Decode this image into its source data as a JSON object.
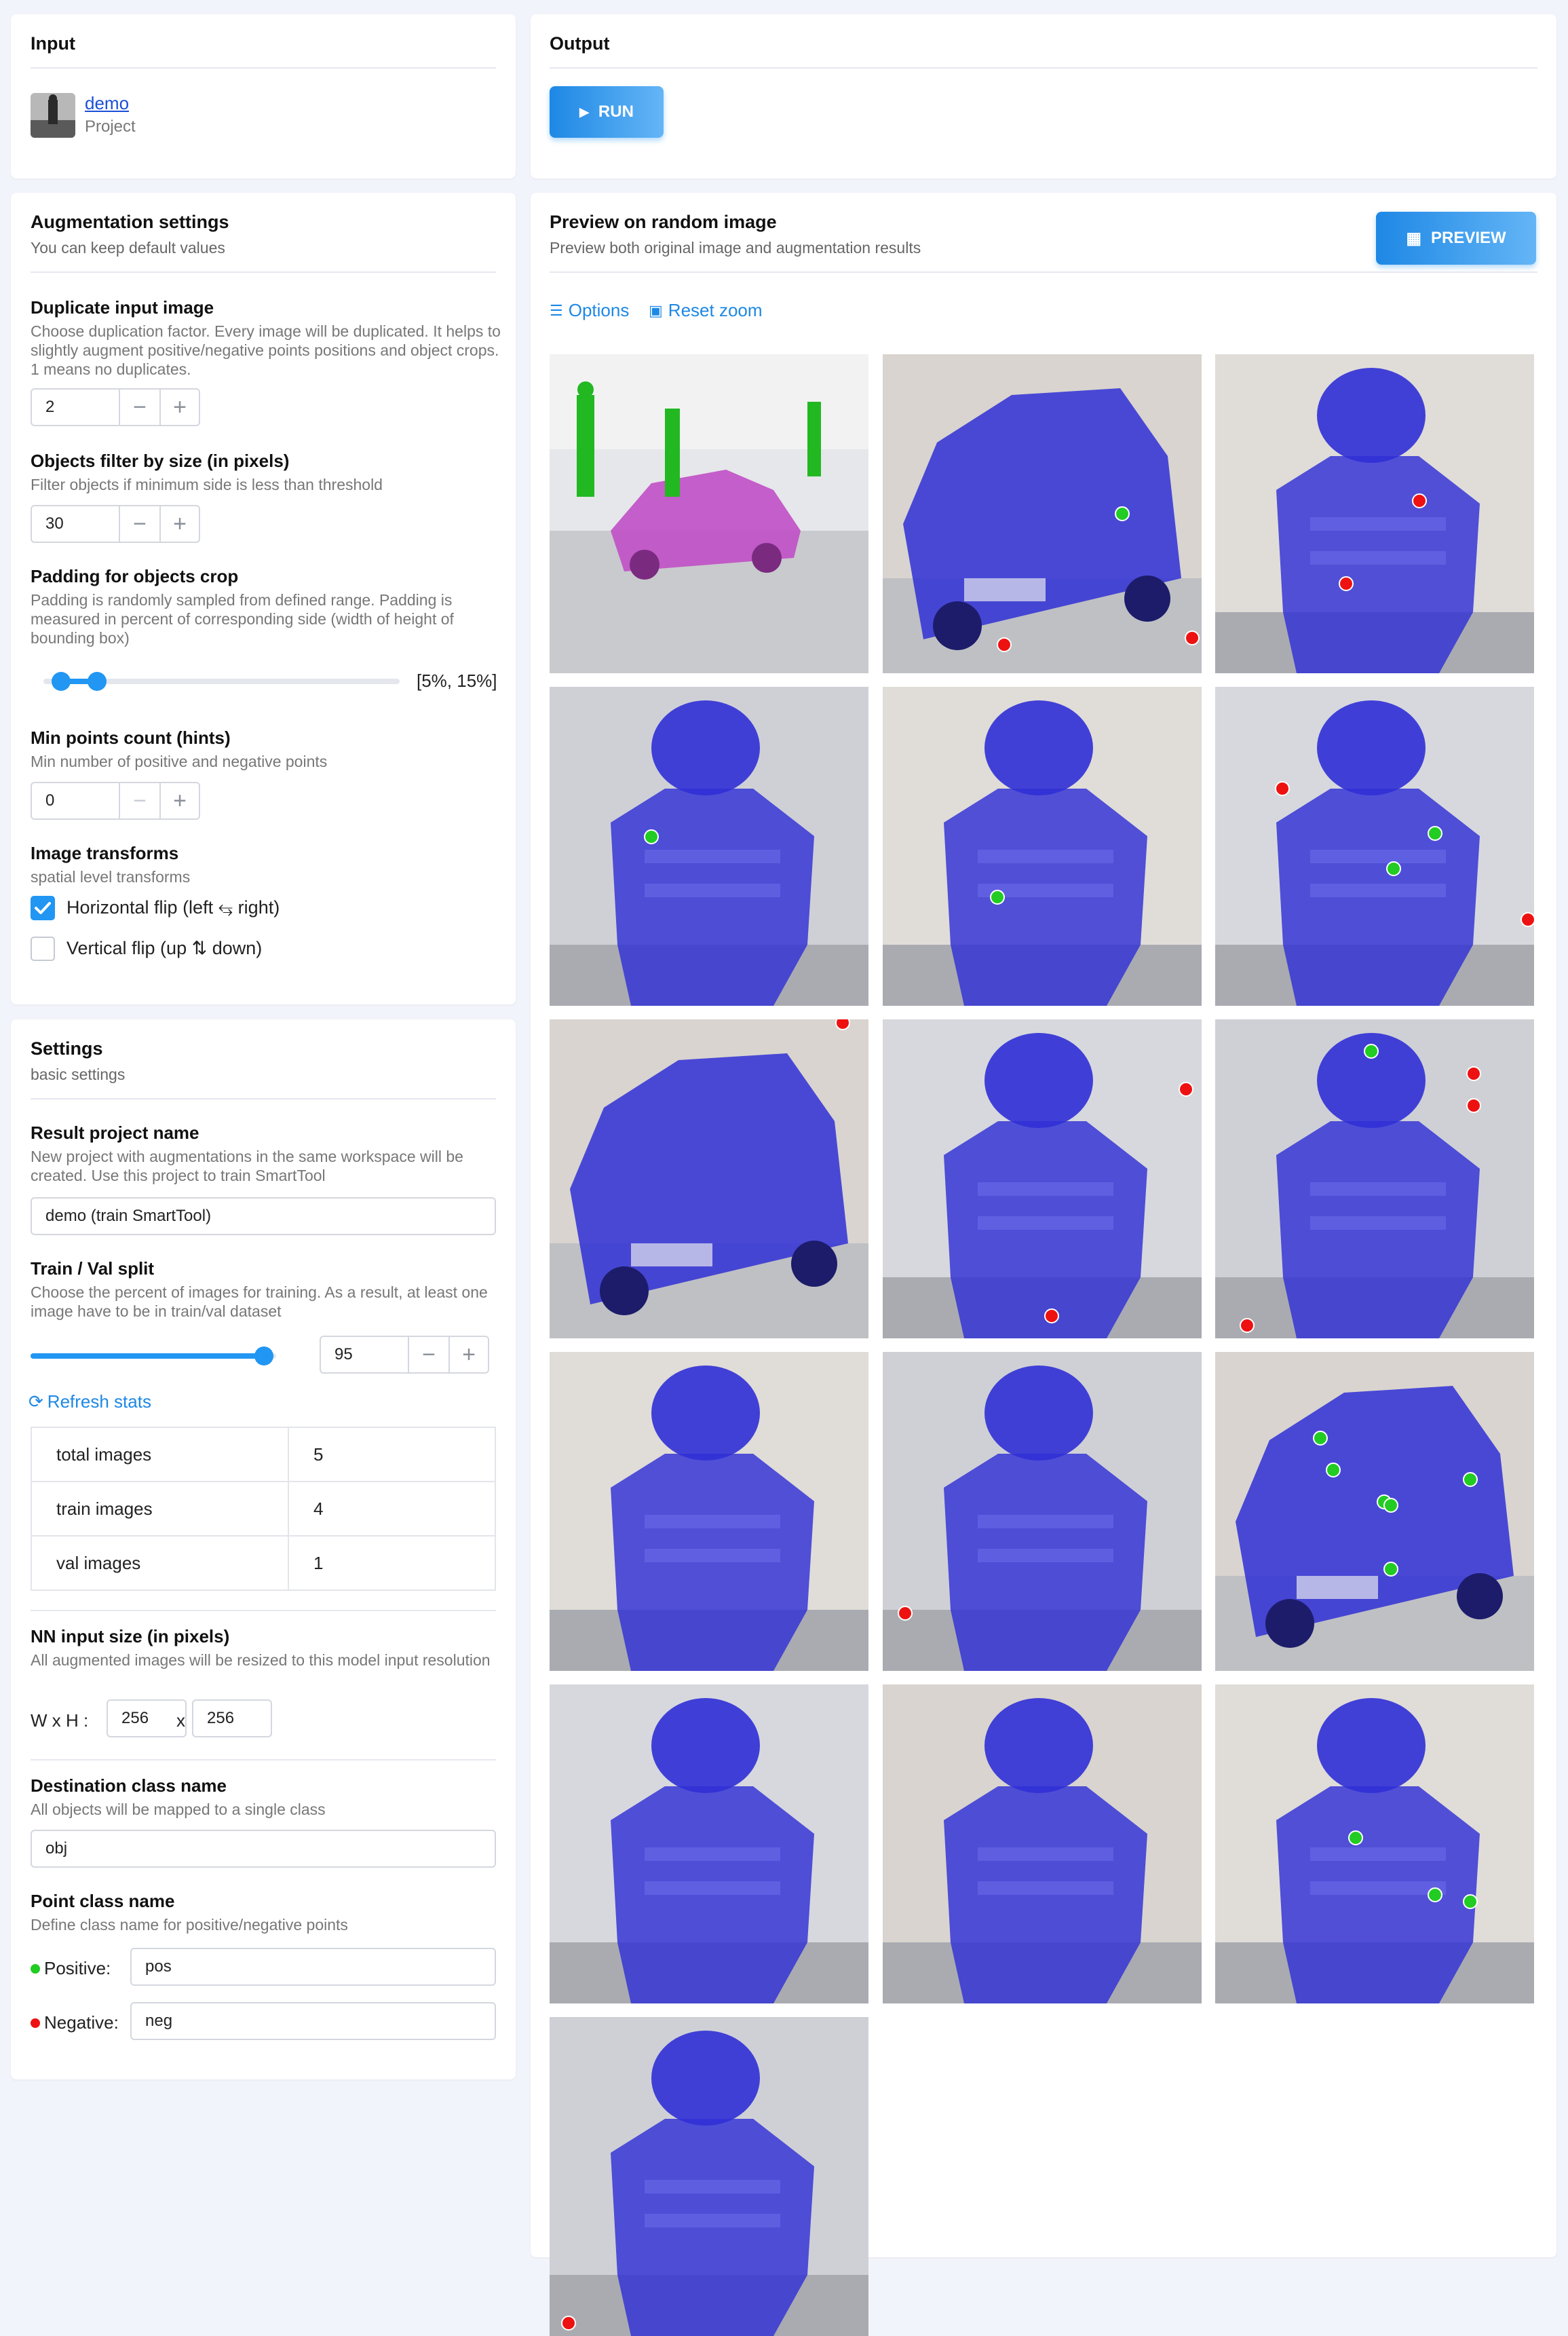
{
  "input": {
    "title": "Input",
    "project_link": "demo",
    "project_kind": "Project"
  },
  "output": {
    "title": "Output",
    "run_label": "RUN"
  },
  "augmentation": {
    "title": "Augmentation settings",
    "subtitle": "You can keep default values",
    "duplicate": {
      "label": "Duplicate input image",
      "desc": "Choose duplication factor. Every image will be duplicated. It helps to slightly augment positive/negative points positions and object crops. 1 means no duplicates.",
      "value": "2"
    },
    "filter": {
      "label": "Objects filter by size (in pixels)",
      "desc": "Filter objects if minimum side is less than threshold",
      "value": "30"
    },
    "padding": {
      "label": "Padding for objects crop",
      "desc": "Padding is randomly sampled from defined range. Padding is measured in percent of corresponding side (width of height of bounding box)",
      "range_text": "[5%, 15%]",
      "min_value": 5,
      "max_value": 15,
      "slider_max": 100
    },
    "min_points": {
      "label": "Min points count (hints)",
      "desc": "Min number of positive and negative points",
      "value": "0"
    },
    "transforms": {
      "label": "Image transforms",
      "desc": "spatial level transforms",
      "hflip_label": "Horizontal flip (left ⥃ right)",
      "hflip_checked": true,
      "vflip_label": "Vertical flip (up ⇅ down)",
      "vflip_checked": false
    }
  },
  "settings": {
    "title": "Settings",
    "subtitle": "basic settings",
    "result_name": {
      "label": "Result project name",
      "desc": "New project with augmentations in the same workspace will be created. Use this project to train SmartTool",
      "value": "demo (train SmartTool)"
    },
    "split": {
      "label": "Train / Val split",
      "desc": "Choose the percent of images for training. As a result, at least one image have to be in train/val dataset",
      "value": "95",
      "percent": 95
    },
    "refresh_label": "Refresh stats",
    "stats": [
      {
        "name": "total images",
        "value": "5"
      },
      {
        "name": "train images",
        "value": "4"
      },
      {
        "name": "val images",
        "value": "1"
      }
    ],
    "nn_size": {
      "label": "NN input size (in pixels)",
      "desc": "All augmented images will be resized to this model input resolution",
      "wh_label": "W x H :",
      "width": "256",
      "x_sep": "x",
      "height": "256"
    },
    "dest_class": {
      "label": "Destination class name",
      "desc": "All objects will be mapped to a single class",
      "value": "obj"
    },
    "point_class": {
      "label": "Point class name",
      "desc": "Define class name for positive/negative points",
      "positive_label": "Positive:",
      "positive_value": "pos",
      "negative_label": "Negative:",
      "negative_value": "neg",
      "positive_color": "#22cc22",
      "negative_color": "#ee1111"
    }
  },
  "preview": {
    "title": "Preview on random image",
    "subtitle": "Preview both original image and augmentation results",
    "button_label": "PREVIEW",
    "options_label": "Options",
    "reset_zoom_label": "Reset zoom",
    "mask_color": "#2f2fd6",
    "tiles": [
      {
        "kind": "car-scene"
      },
      {
        "kind": "person-crop",
        "pos": [
          [
            0.32,
            0.47
          ]
        ],
        "neg": []
      },
      {
        "kind": "car-crop",
        "pos": [],
        "neg": [
          [
            0.92,
            0.01
          ]
        ]
      },
      {
        "kind": "person-crop",
        "pos": [],
        "neg": []
      },
      {
        "kind": "person-crop",
        "pos": [],
        "neg": []
      },
      {
        "kind": "person-crop",
        "pos": [],
        "neg": [
          [
            0.06,
            0.96
          ]
        ]
      },
      {
        "kind": "car-crop",
        "pos": [
          [
            0.75,
            0.5
          ]
        ],
        "neg": [
          [
            0.38,
            0.91
          ],
          [
            0.97,
            0.89
          ]
        ]
      },
      {
        "kind": "person-crop",
        "pos": [
          [
            0.36,
            0.66
          ]
        ],
        "neg": []
      },
      {
        "kind": "person-crop",
        "pos": [],
        "neg": [
          [
            0.95,
            0.22
          ],
          [
            0.53,
            0.93
          ]
        ]
      },
      {
        "kind": "person-crop",
        "pos": [],
        "neg": [
          [
            0.07,
            0.82
          ]
        ]
      },
      {
        "kind": "person-crop",
        "pos": [],
        "neg": []
      },
      {
        "kind": "person-crop",
        "pos": [],
        "neg": [
          [
            0.64,
            0.46
          ],
          [
            0.41,
            0.72
          ]
        ]
      },
      {
        "kind": "person-crop",
        "pos": [
          [
            0.69,
            0.46
          ],
          [
            0.56,
            0.57
          ]
        ],
        "neg": [
          [
            0.21,
            0.32
          ],
          [
            0.98,
            0.73
          ]
        ]
      },
      {
        "kind": "person-crop",
        "pos": [
          [
            0.49,
            0.1
          ]
        ],
        "neg": [
          [
            0.81,
            0.17
          ],
          [
            0.81,
            0.27
          ],
          [
            0.1,
            0.96
          ]
        ]
      },
      {
        "kind": "car-crop",
        "pos": [
          [
            0.33,
            0.27
          ],
          [
            0.37,
            0.37
          ],
          [
            0.53,
            0.47
          ],
          [
            0.55,
            0.48
          ],
          [
            0.8,
            0.4
          ],
          [
            0.55,
            0.68
          ]
        ],
        "neg": []
      },
      {
        "kind": "person-crop",
        "pos": [
          [
            0.44,
            0.48
          ],
          [
            0.69,
            0.66
          ],
          [
            0.8,
            0.68
          ]
        ],
        "neg": []
      }
    ]
  }
}
